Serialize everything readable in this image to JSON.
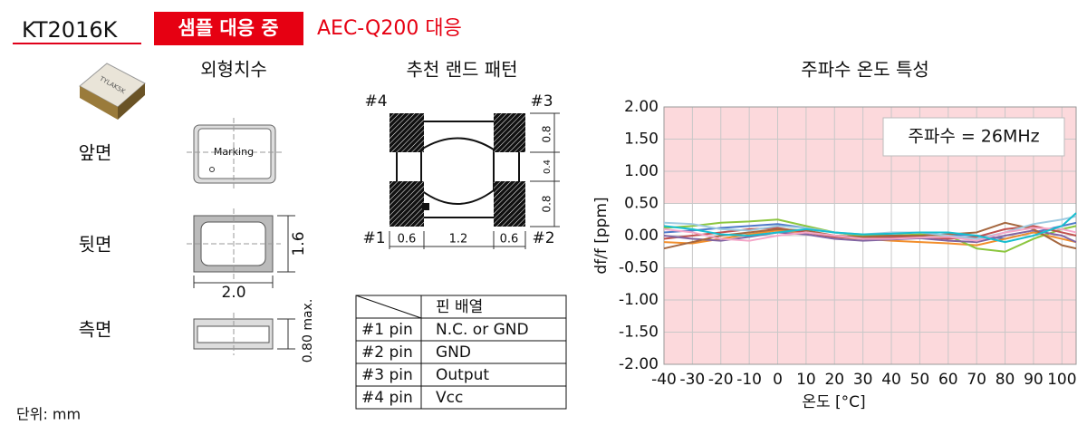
{
  "header": {
    "model": "KT2016K",
    "badge": "샘플 대응 중",
    "note": "AEC-Q200 대응"
  },
  "outline": {
    "title": "외형치수",
    "views": [
      "앞면",
      "뒷면",
      "측면"
    ],
    "marking": "Marking",
    "dimensions": [
      "1.6",
      "2.0",
      "0.80 max."
    ]
  },
  "land_pattern": {
    "title": "추천 랜드 패턴",
    "pins": [
      "#4",
      "#3",
      "#1",
      "#2"
    ],
    "dimensions": [
      "0.8",
      "0.4",
      "0.8",
      "0.6",
      "1.2",
      "0.6"
    ]
  },
  "pin_table": {
    "header": "핀 배열",
    "rows": [
      [
        "#1 pin",
        "N.C. or GND"
      ],
      [
        "#2 pin",
        "GND"
      ],
      [
        "#3 pin",
        "Output"
      ],
      [
        "#4 pin",
        "Vcc"
      ]
    ]
  },
  "unit": "단위: mm",
  "chart_data": {
    "type": "line",
    "title": "주파수 온도 특성",
    "annotation": "주파수 = 26MHz",
    "x_label": "온도 [°C]",
    "y_label": "df/f [ppm]",
    "x": [
      -40,
      -30,
      -20,
      -10,
      0,
      10,
      20,
      30,
      40,
      50,
      60,
      70,
      80,
      90,
      100,
      105
    ],
    "xlim": [
      -40,
      105
    ],
    "xticks": [
      -40,
      -30,
      -20,
      -10,
      0,
      10,
      20,
      30,
      40,
      50,
      60,
      70,
      80,
      90,
      100
    ],
    "ylim": [
      -2,
      2
    ],
    "yticks": [
      {
        "value": -2,
        "label": "-2.00"
      },
      {
        "value": -1.5,
        "label": "-1.50"
      },
      {
        "value": -1,
        "label": "-1.00"
      },
      {
        "value": -0.5,
        "label": "-0.50"
      },
      {
        "value": 0,
        "label": "0.00"
      },
      {
        "value": 0.5,
        "label": "0.50"
      },
      {
        "value": 1,
        "label": "1.00"
      },
      {
        "value": 1.5,
        "label": "1.50"
      },
      {
        "value": 2,
        "label": "2.00"
      }
    ],
    "grid": true,
    "limit_band": [
      -0.5,
      0.5
    ],
    "band_color": "#fcd9dc",
    "series": [
      {
        "color": "#4e79c8",
        "values": [
          0.05,
          0.08,
          0.12,
          0.15,
          0.18,
          0.12,
          0.05,
          0.0,
          -0.02,
          0.0,
          0.02,
          0.0,
          -0.05,
          0.05,
          0.15,
          0.2
        ]
      },
      {
        "color": "#f28e2b",
        "values": [
          -0.1,
          -0.12,
          -0.05,
          0.02,
          0.08,
          0.05,
          -0.02,
          -0.05,
          -0.08,
          -0.1,
          -0.12,
          -0.15,
          -0.05,
          0.05,
          -0.05,
          -0.1
        ]
      },
      {
        "color": "#8cc63f",
        "values": [
          0.12,
          0.15,
          0.2,
          0.22,
          0.25,
          0.15,
          0.05,
          0.0,
          0.0,
          0.02,
          0.0,
          -0.2,
          -0.25,
          -0.05,
          0.1,
          0.15
        ]
      },
      {
        "color": "#c0504d",
        "values": [
          -0.05,
          0.0,
          0.05,
          0.1,
          0.12,
          0.05,
          -0.02,
          -0.04,
          -0.03,
          -0.02,
          -0.05,
          -0.02,
          0.1,
          0.15,
          0.05,
          0.0
        ]
      },
      {
        "color": "#8064a2",
        "values": [
          0.0,
          -0.05,
          -0.08,
          -0.02,
          0.05,
          0.02,
          -0.05,
          -0.08,
          -0.06,
          -0.04,
          -0.08,
          -0.1,
          0.0,
          0.08,
          0.0,
          -0.1
        ]
      },
      {
        "color": "#a5673f",
        "values": [
          -0.2,
          -0.1,
          0.0,
          0.05,
          0.1,
          0.08,
          0.0,
          -0.02,
          0.0,
          0.0,
          0.02,
          0.05,
          0.2,
          0.1,
          -0.15,
          -0.2
        ]
      },
      {
        "color": "#9ecae1",
        "values": [
          0.2,
          0.18,
          0.1,
          0.08,
          0.15,
          0.12,
          0.05,
          0.02,
          0.05,
          0.05,
          0.0,
          -0.05,
          0.05,
          0.18,
          0.25,
          0.3
        ]
      },
      {
        "color": "#f4a6c8",
        "values": [
          0.1,
          0.05,
          -0.05,
          -0.08,
          0.0,
          0.05,
          0.0,
          -0.05,
          -0.05,
          -0.03,
          -0.02,
          -0.08,
          0.05,
          0.12,
          0.1,
          0.05
        ]
      },
      {
        "color": "#17becf",
        "values": [
          0.15,
          0.1,
          0.02,
          0.0,
          0.05,
          0.1,
          0.05,
          0.02,
          0.03,
          0.05,
          0.05,
          0.0,
          -0.1,
          0.0,
          0.15,
          0.35
        ]
      }
    ]
  }
}
